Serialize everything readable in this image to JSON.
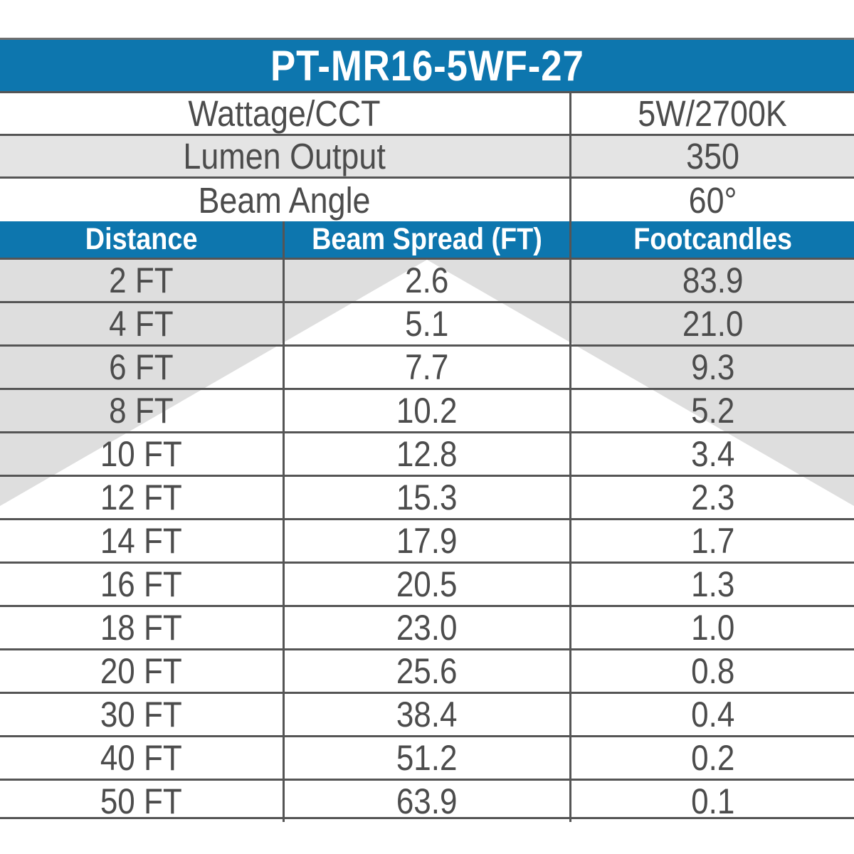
{
  "title": "PT-MR16-5WF-27",
  "specs": [
    {
      "label": "Wattage/CCT",
      "value": "5W/2700K"
    },
    {
      "label": "Lumen Output",
      "value": "350"
    },
    {
      "label": "Beam Angle",
      "value": "60°"
    }
  ],
  "table": {
    "columns": [
      "Distance",
      "Beam Spread (FT)",
      "Footcandles"
    ],
    "rows": [
      [
        "2 FT",
        "2.6",
        "83.9"
      ],
      [
        "4 FT",
        "5.1",
        "21.0"
      ],
      [
        "6 FT",
        "7.7",
        "9.3"
      ],
      [
        "8 FT",
        "10.2",
        "5.2"
      ],
      [
        "10 FT",
        "12.8",
        "3.4"
      ],
      [
        "12 FT",
        "15.3",
        "2.3"
      ],
      [
        "14 FT",
        "17.9",
        "1.7"
      ],
      [
        "16 FT",
        "20.5",
        "1.3"
      ],
      [
        "18 FT",
        "23.0",
        "1.0"
      ],
      [
        "20 FT",
        "25.6",
        "0.8"
      ],
      [
        "30 FT",
        "38.4",
        "0.4"
      ],
      [
        "40 FT",
        "51.2",
        "0.2"
      ],
      [
        "50 FT",
        "63.9",
        "0.1"
      ]
    ]
  },
  "colors": {
    "header_blue": "#0d76ae",
    "spec_alt_row_gray": "#e4e4e4",
    "beam_background_gray": "#dedede",
    "beam_cone_white": "#ffffff",
    "grid_line_gray": "#555555",
    "text_gray": "#4c4c4c",
    "header_text_white": "#ffffff"
  },
  "chart_data": {
    "type": "table",
    "title": "PT-MR16-5WF-27",
    "model": "PT-MR16-5WF-27",
    "wattage_cct": "5W/2700K",
    "lumen_output": 350,
    "beam_angle_degrees": 60,
    "columns": [
      "Distance",
      "Beam Spread (FT)",
      "Footcandles"
    ],
    "distance_ft": [
      2,
      4,
      6,
      8,
      10,
      12,
      14,
      16,
      18,
      20,
      30,
      40,
      50
    ],
    "beam_spread_ft": [
      2.6,
      5.1,
      7.7,
      10.2,
      12.8,
      15.3,
      17.9,
      20.5,
      23.0,
      25.6,
      38.4,
      51.2,
      63.9
    ],
    "footcandles": [
      83.9,
      21.0,
      9.3,
      5.2,
      3.4,
      2.3,
      1.7,
      1.3,
      1.0,
      0.8,
      0.4,
      0.2,
      0.1
    ],
    "annotations": [
      "white 60-degree beam-cone graphic widens downward behind the data rows, apex at top center"
    ]
  }
}
